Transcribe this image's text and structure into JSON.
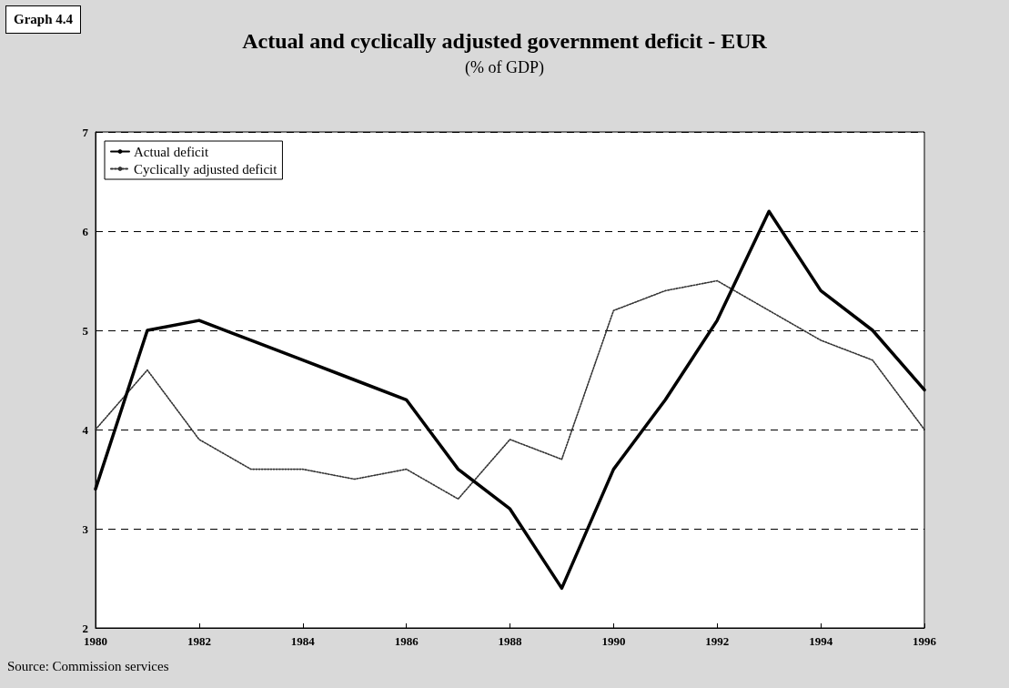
{
  "chart_data": {
    "type": "line",
    "title": "Actual and cyclically adjusted government deficit - EUR",
    "subtitle": "(% of GDP)",
    "annotations": [
      "Graph 4.4",
      "Source: Commission services"
    ],
    "x": [
      1980,
      1981,
      1982,
      1983,
      1984,
      1985,
      1986,
      1987,
      1988,
      1989,
      1990,
      1991,
      1992,
      1993,
      1994,
      1995,
      1996
    ],
    "series": [
      {
        "name": "Actual deficit",
        "color": "#000000",
        "line_style": "solid",
        "values": [
          3.4,
          5.0,
          5.1,
          4.9,
          4.7,
          4.5,
          4.3,
          3.6,
          3.2,
          2.4,
          3.6,
          4.3,
          5.1,
          6.2,
          5.4,
          5.0,
          4.4
        ]
      },
      {
        "name": "Cyclically adjusted deficit",
        "color": "#333333",
        "line_style": "dotted",
        "values": [
          4.0,
          4.6,
          3.9,
          3.6,
          3.6,
          3.5,
          3.6,
          3.3,
          3.9,
          3.7,
          5.2,
          5.4,
          5.5,
          5.2,
          4.9,
          4.7,
          4.0
        ]
      }
    ],
    "xlim": [
      1980,
      1996
    ],
    "xticks": [
      1980,
      1982,
      1984,
      1986,
      1988,
      1990,
      1992,
      1994,
      1996
    ],
    "ylim": [
      2,
      7
    ],
    "yticks": [
      2,
      3,
      4,
      5,
      6,
      7
    ],
    "grid": "y",
    "legend": "top left",
    "marker": "none"
  }
}
